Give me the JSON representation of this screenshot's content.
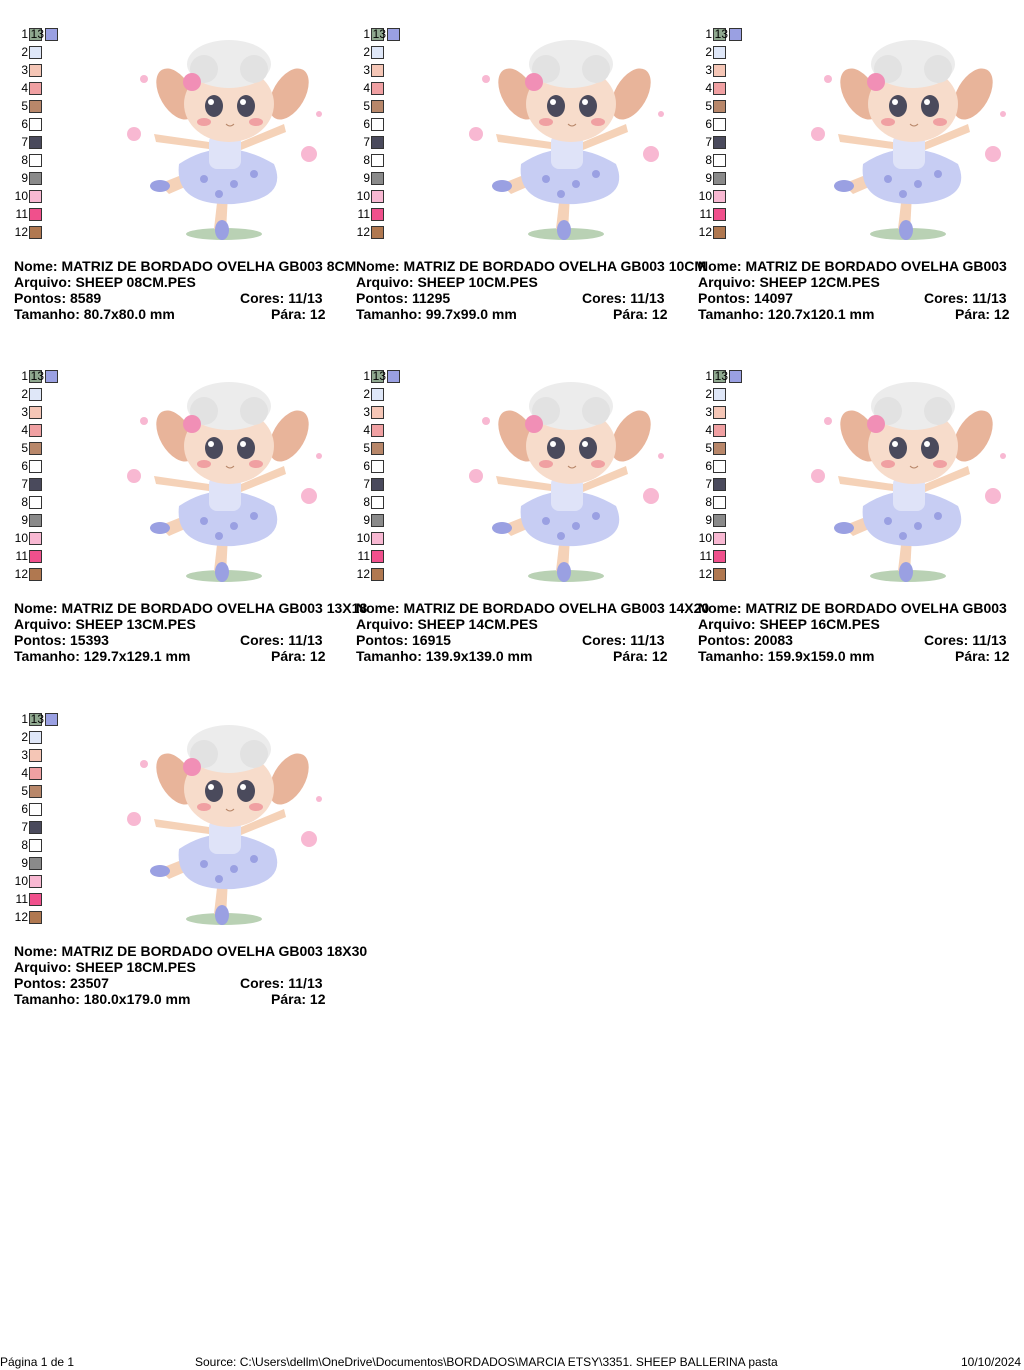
{
  "labels": {
    "name": "Nome:",
    "file": "Arquivo:",
    "points": "Pontos:",
    "colors": "Cores:",
    "size": "Tamanho:",
    "stops": "Pára:"
  },
  "palette": [
    {
      "number": "1",
      "color": "#8fa88f"
    },
    {
      "number": "2",
      "color": "#dfe7f8"
    },
    {
      "number": "3",
      "color": "#f5c6b6"
    },
    {
      "number": "4",
      "color": "#f0a0a2"
    },
    {
      "number": "5",
      "color": "#b8876a"
    },
    {
      "number": "6",
      "color": "#ffffff"
    },
    {
      "number": "7",
      "color": "#4a4a5c"
    },
    {
      "number": "8",
      "color": "#ffffff"
    },
    {
      "number": "9",
      "color": "#8a8a8a"
    },
    {
      "number": "10",
      "color": "#f8b8d2"
    },
    {
      "number": "11",
      "color": "#f0508c"
    },
    {
      "number": "12",
      "color": "#b07850"
    },
    {
      "number": "13",
      "color": "#9aa0e2"
    }
  ],
  "items": [
    {
      "name": "MATRIZ DE BORDADO OVELHA GB003 8CM",
      "file": "SHEEP 08CM.PES",
      "points": "8589",
      "colors": "11/13",
      "size": "80.7x80.0 mm",
      "stops": "12"
    },
    {
      "name": "MATRIZ DE BORDADO OVELHA GB003 10CM",
      "file": "SHEEP 10CM.PES",
      "points": "11295",
      "colors": "11/13",
      "size": "99.7x99.0 mm",
      "stops": "12"
    },
    {
      "name": "MATRIZ DE BORDADO OVELHA GB003",
      "file": "SHEEP 12CM.PES",
      "points": "14097",
      "colors": "11/13",
      "size": "120.7x120.1 mm",
      "stops": "12"
    },
    {
      "name": "MATRIZ DE BORDADO OVELHA GB003 13X18",
      "file": "SHEEP 13CM.PES",
      "points": "15393",
      "colors": "11/13",
      "size": "129.7x129.1 mm",
      "stops": "12"
    },
    {
      "name": "MATRIZ DE BORDADO OVELHA GB003 14X20",
      "file": "SHEEP 14CM.PES",
      "points": "16915",
      "colors": "11/13",
      "size": "139.9x139.0 mm",
      "stops": "12"
    },
    {
      "name": "MATRIZ DE BORDADO OVELHA GB003",
      "file": "SHEEP 16CM.PES",
      "points": "20083",
      "colors": "11/13",
      "size": "159.9x159.0 mm",
      "stops": "12"
    },
    {
      "name": "MATRIZ DE BORDADO OVELHA GB003 18X30",
      "file": "SHEEP 18CM.PES",
      "points": "23507",
      "colors": "11/13",
      "size": "180.0x179.0 mm",
      "stops": "12"
    }
  ],
  "footer": {
    "page": "Página 1 de 1",
    "source": "Source: C:\\Users\\dellm\\OneDrive\\Documentos\\BORDADOS\\MARCIA ETSY\\3351. SHEEP BALLERINA pasta",
    "date": "10/10/2024"
  }
}
